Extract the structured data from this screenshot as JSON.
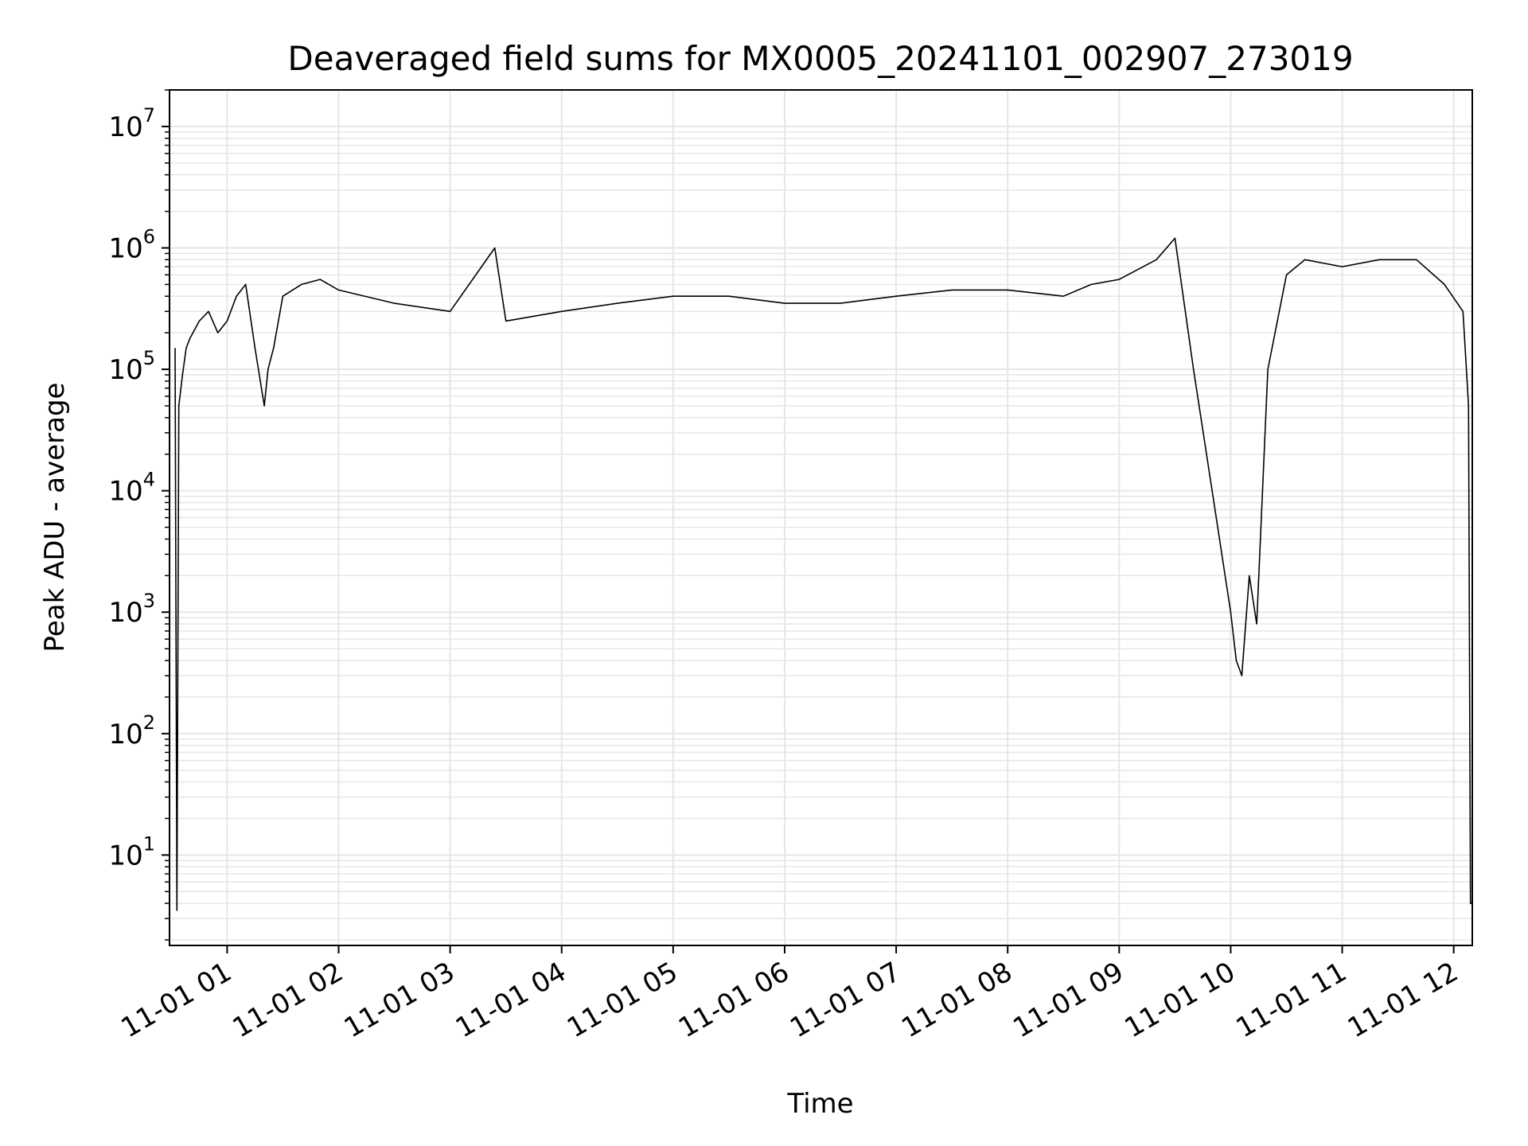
{
  "chart_data": {
    "type": "line",
    "title": "Deaveraged field sums for MX0005_20241101_002907_273019",
    "xlabel": "Time",
    "ylabel": "Peak ADU - average",
    "yscale": "log",
    "xlim": [
      "2024-11-01T00:29:00",
      "2024-11-01T12:10:00"
    ],
    "ylim": [
      1.8,
      20000000
    ],
    "x_ticks": [
      {
        "value": "2024-11-01T01:00:00",
        "label": "11-01 01"
      },
      {
        "value": "2024-11-01T02:00:00",
        "label": "11-01 02"
      },
      {
        "value": "2024-11-01T03:00:00",
        "label": "11-01 03"
      },
      {
        "value": "2024-11-01T04:00:00",
        "label": "11-01 04"
      },
      {
        "value": "2024-11-01T05:00:00",
        "label": "11-01 05"
      },
      {
        "value": "2024-11-01T06:00:00",
        "label": "11-01 06"
      },
      {
        "value": "2024-11-01T07:00:00",
        "label": "11-01 07"
      },
      {
        "value": "2024-11-01T08:00:00",
        "label": "11-01 08"
      },
      {
        "value": "2024-11-01T09:00:00",
        "label": "11-01 09"
      },
      {
        "value": "2024-11-01T10:00:00",
        "label": "11-01 10"
      },
      {
        "value": "2024-11-01T11:00:00",
        "label": "11-01 11"
      },
      {
        "value": "2024-11-01T12:00:00",
        "label": "11-01 12"
      }
    ],
    "y_ticks": [
      {
        "value": 10,
        "base": "10",
        "exp": "1"
      },
      {
        "value": 100,
        "base": "10",
        "exp": "2"
      },
      {
        "value": 1000,
        "base": "10",
        "exp": "3"
      },
      {
        "value": 10000,
        "base": "10",
        "exp": "4"
      },
      {
        "value": 100000,
        "base": "10",
        "exp": "5"
      },
      {
        "value": 1000000,
        "base": "10",
        "exp": "6"
      },
      {
        "value": 10000000,
        "base": "10",
        "exp": "7"
      }
    ],
    "grid": true,
    "line_color": "#000000",
    "grid_color": "#e6e6e6",
    "series": [
      {
        "x": [
          "2024-11-01T00:32:00",
          "2024-11-01T00:33:00",
          "2024-11-01T00:34:00",
          "2024-11-01T00:36:00",
          "2024-11-01T00:38:00",
          "2024-11-01T00:40:00",
          "2024-11-01T00:45:00",
          "2024-11-01T00:50:00",
          "2024-11-01T00:55:00",
          "2024-11-01T01:00:00",
          "2024-11-01T01:05:00",
          "2024-11-01T01:10:00",
          "2024-11-01T01:15:00",
          "2024-11-01T01:20:00",
          "2024-11-01T01:22:00",
          "2024-11-01T01:25:00",
          "2024-11-01T01:30:00",
          "2024-11-01T01:40:00",
          "2024-11-01T01:50:00",
          "2024-11-01T02:00:00",
          "2024-11-01T02:30:00",
          "2024-11-01T03:00:00",
          "2024-11-01T03:24:00",
          "2024-11-01T03:30:00",
          "2024-11-01T04:00:00",
          "2024-11-01T04:30:00",
          "2024-11-01T05:00:00",
          "2024-11-01T05:30:00",
          "2024-11-01T06:00:00",
          "2024-11-01T06:30:00",
          "2024-11-01T07:00:00",
          "2024-11-01T07:30:00",
          "2024-11-01T08:00:00",
          "2024-11-01T08:30:00",
          "2024-11-01T08:45:00",
          "2024-11-01T09:00:00",
          "2024-11-01T09:20:00",
          "2024-11-01T09:30:00",
          "2024-11-01T09:40:00",
          "2024-11-01T09:50:00",
          "2024-11-01T10:00:00",
          "2024-11-01T10:03:00",
          "2024-11-01T10:06:00",
          "2024-11-01T10:10:00",
          "2024-11-01T10:14:00",
          "2024-11-01T10:20:00",
          "2024-11-01T10:30:00",
          "2024-11-01T10:40:00",
          "2024-11-01T11:00:00",
          "2024-11-01T11:20:00",
          "2024-11-01T11:40:00",
          "2024-11-01T11:55:00",
          "2024-11-01T12:05:00",
          "2024-11-01T12:08:00",
          "2024-11-01T12:09:00",
          "2024-11-01T12:10:00"
        ],
        "y": [
          150000,
          3.5,
          50000,
          90000,
          150000,
          180000,
          250000,
          300000,
          200000,
          250000,
          400000,
          500000,
          150000,
          50000,
          100000,
          150000,
          400000,
          500000,
          550000,
          450000,
          350000,
          300000,
          1000000,
          250000,
          300000,
          350000,
          400000,
          400000,
          350000,
          350000,
          400000,
          450000,
          450000,
          400000,
          500000,
          550000,
          800000,
          1200000,
          100000,
          10000,
          1000,
          400,
          300,
          2000,
          800,
          100000,
          600000,
          800000,
          700000,
          800000,
          800000,
          500000,
          300000,
          50000,
          4,
          4
        ]
      }
    ]
  }
}
